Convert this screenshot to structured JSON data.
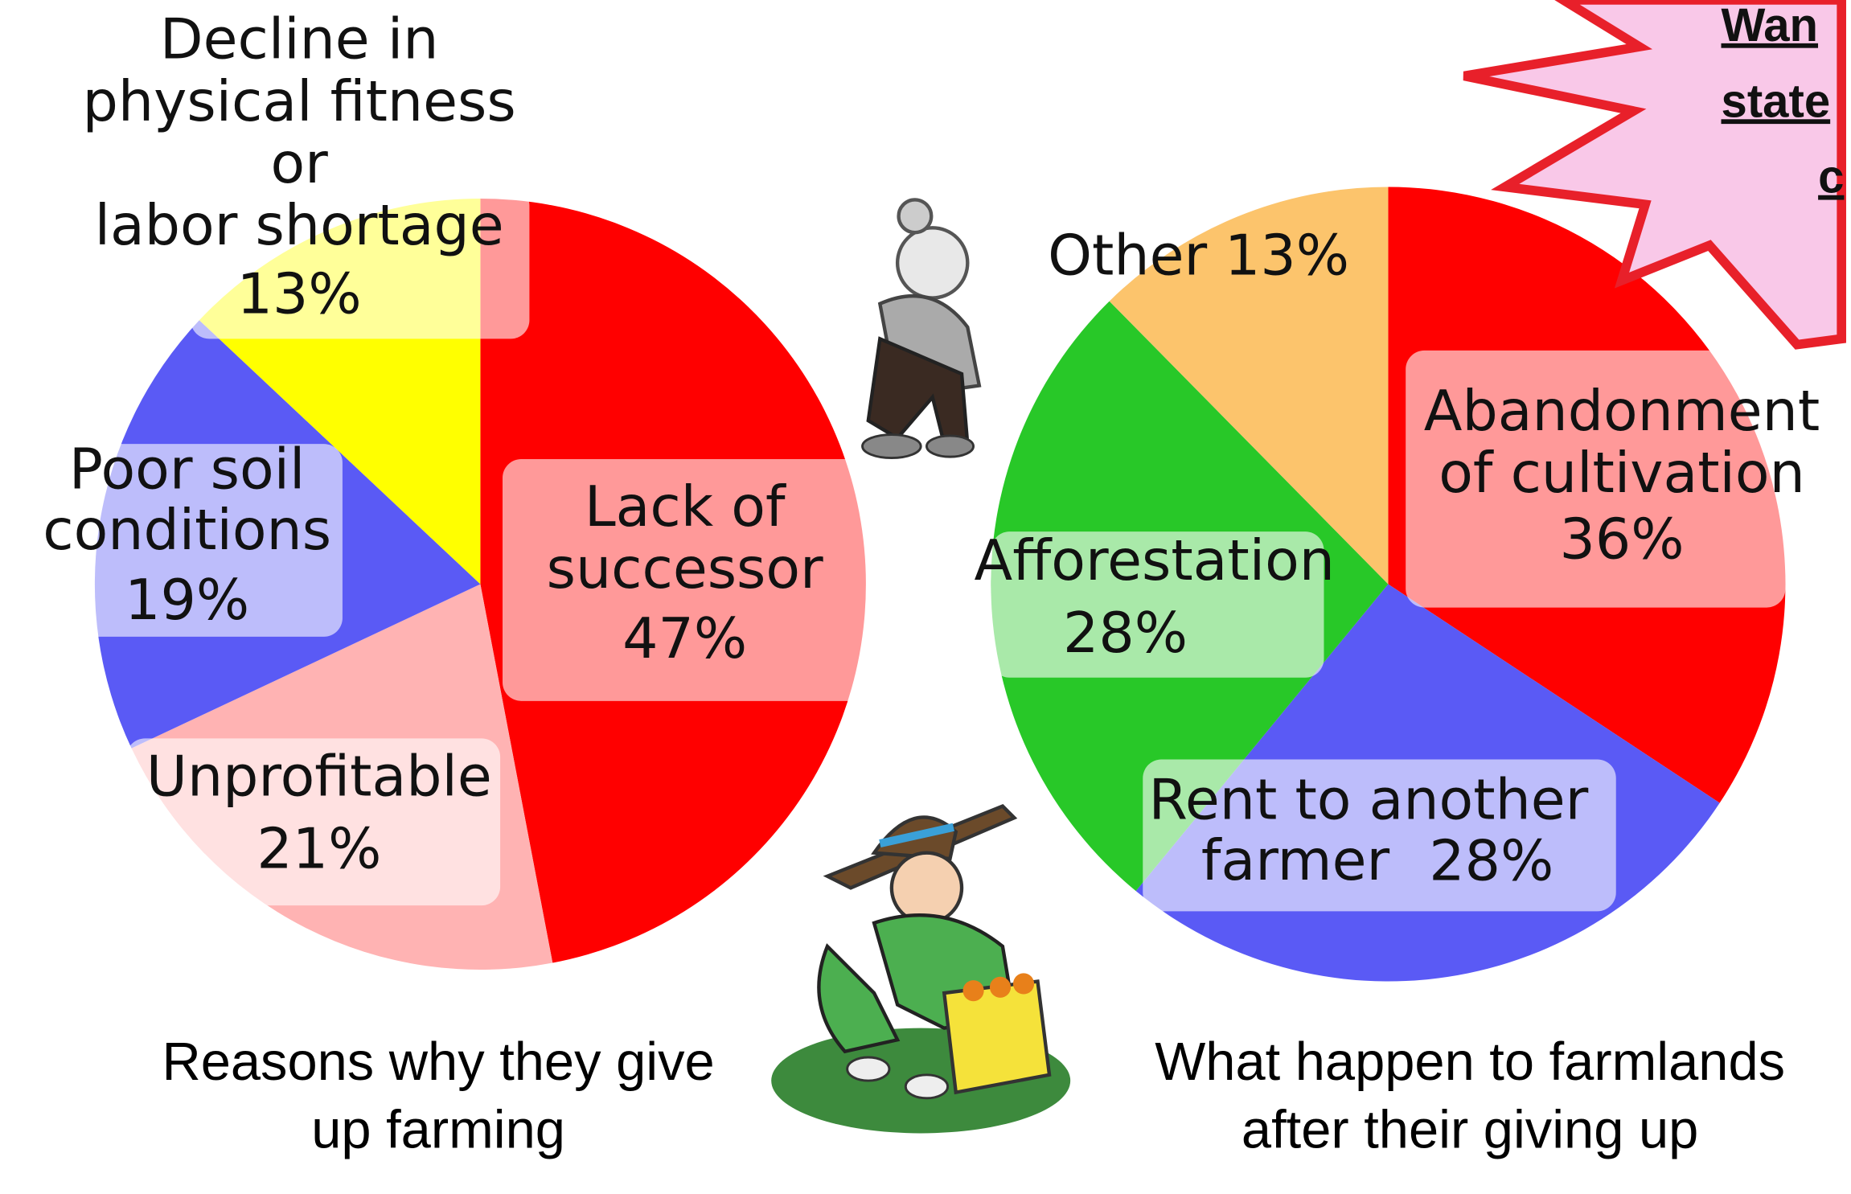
{
  "chart_data": [
    {
      "type": "pie",
      "title": "Reasons why they give\nup farming",
      "categories": [
        "Lack of\nsuccessor",
        "Unprofitable",
        "Poor soil\nconditions",
        "Decline in\nphysical fitness\nor\nlabor shortage"
      ],
      "values": [
        47,
        21,
        19,
        13
      ],
      "value_labels": [
        "47%",
        "21%",
        "19%",
        "13%"
      ],
      "colors": [
        "#ff0000",
        "#ffb3b3",
        "#5a5af5",
        "#ffff00"
      ]
    },
    {
      "type": "pie",
      "title": "What happen to farmlands\nafter  their giving up",
      "categories": [
        "Abandonment\nof cultivation",
        "Rent to another\nfarmer",
        "Afforestation",
        "Other"
      ],
      "values": [
        36,
        28,
        28,
        13
      ],
      "value_labels": [
        "36%",
        "28%",
        "28%",
        "13%"
      ],
      "colors": [
        "#ff0000",
        "#5a5af5",
        "#28c828",
        "#fcc46c"
      ]
    }
  ],
  "callout": {
    "lines": [
      "Wan",
      "state",
      "c"
    ]
  }
}
